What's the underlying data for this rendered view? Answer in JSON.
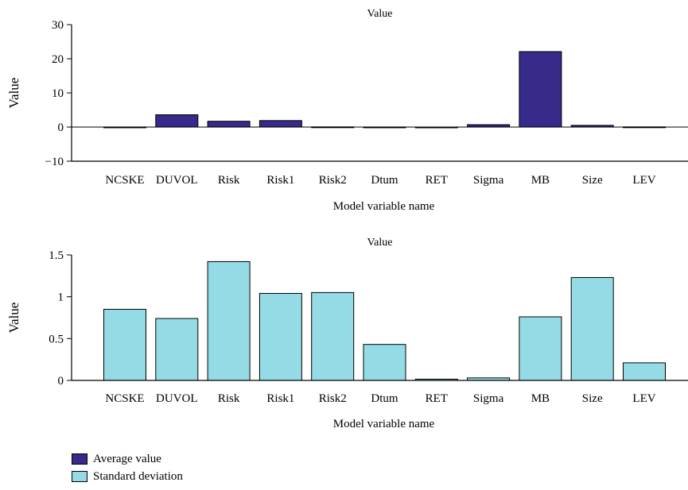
{
  "chart_data": [
    {
      "type": "bar",
      "title": "Value",
      "xlabel": "Model variable name",
      "ylabel": "Value",
      "ylim": [
        -10,
        30
      ],
      "yticks": [
        -10,
        0,
        10,
        20,
        30
      ],
      "ytick_labels": [
        "−10",
        "0",
        "10",
        "20",
        "30"
      ],
      "categories": [
        "NCSKE",
        "DUVOL",
        "Risk",
        "Risk1",
        "Risk2",
        "Dtum",
        "RET",
        "Sigma",
        "MB",
        "Size",
        "LEV"
      ],
      "series": [
        {
          "name": "Average value",
          "color": "#362a8a",
          "values": [
            0.02,
            3.6,
            1.7,
            1.9,
            0.05,
            0.02,
            0.01,
            0.7,
            22.1,
            0.5,
            0.05
          ]
        }
      ],
      "grid": false
    },
    {
      "type": "bar",
      "title": "Value",
      "xlabel": "Model variable name",
      "ylabel": "Value",
      "ylim": [
        0,
        1.5
      ],
      "yticks": [
        0,
        0.5,
        1,
        1.5
      ],
      "ytick_labels": [
        "0",
        "0.5",
        "1",
        "1.5"
      ],
      "categories": [
        "NCSKE",
        "DUVOL",
        "Risk",
        "Risk1",
        "Risk2",
        "Dtum",
        "RET",
        "Sigma",
        "MB",
        "Size",
        "LEV"
      ],
      "series": [
        {
          "name": "Standard deviation",
          "color": "#94dbe5",
          "values": [
            0.85,
            0.74,
            1.42,
            1.04,
            1.05,
            0.43,
            0.015,
            0.03,
            0.76,
            1.23,
            0.21
          ]
        }
      ],
      "grid": false
    }
  ],
  "legend": {
    "position": "bottom-left",
    "items": [
      {
        "label": "Average value",
        "color": "#362a8a"
      },
      {
        "label": "Standard deviation",
        "color": "#94dbe5"
      }
    ]
  }
}
